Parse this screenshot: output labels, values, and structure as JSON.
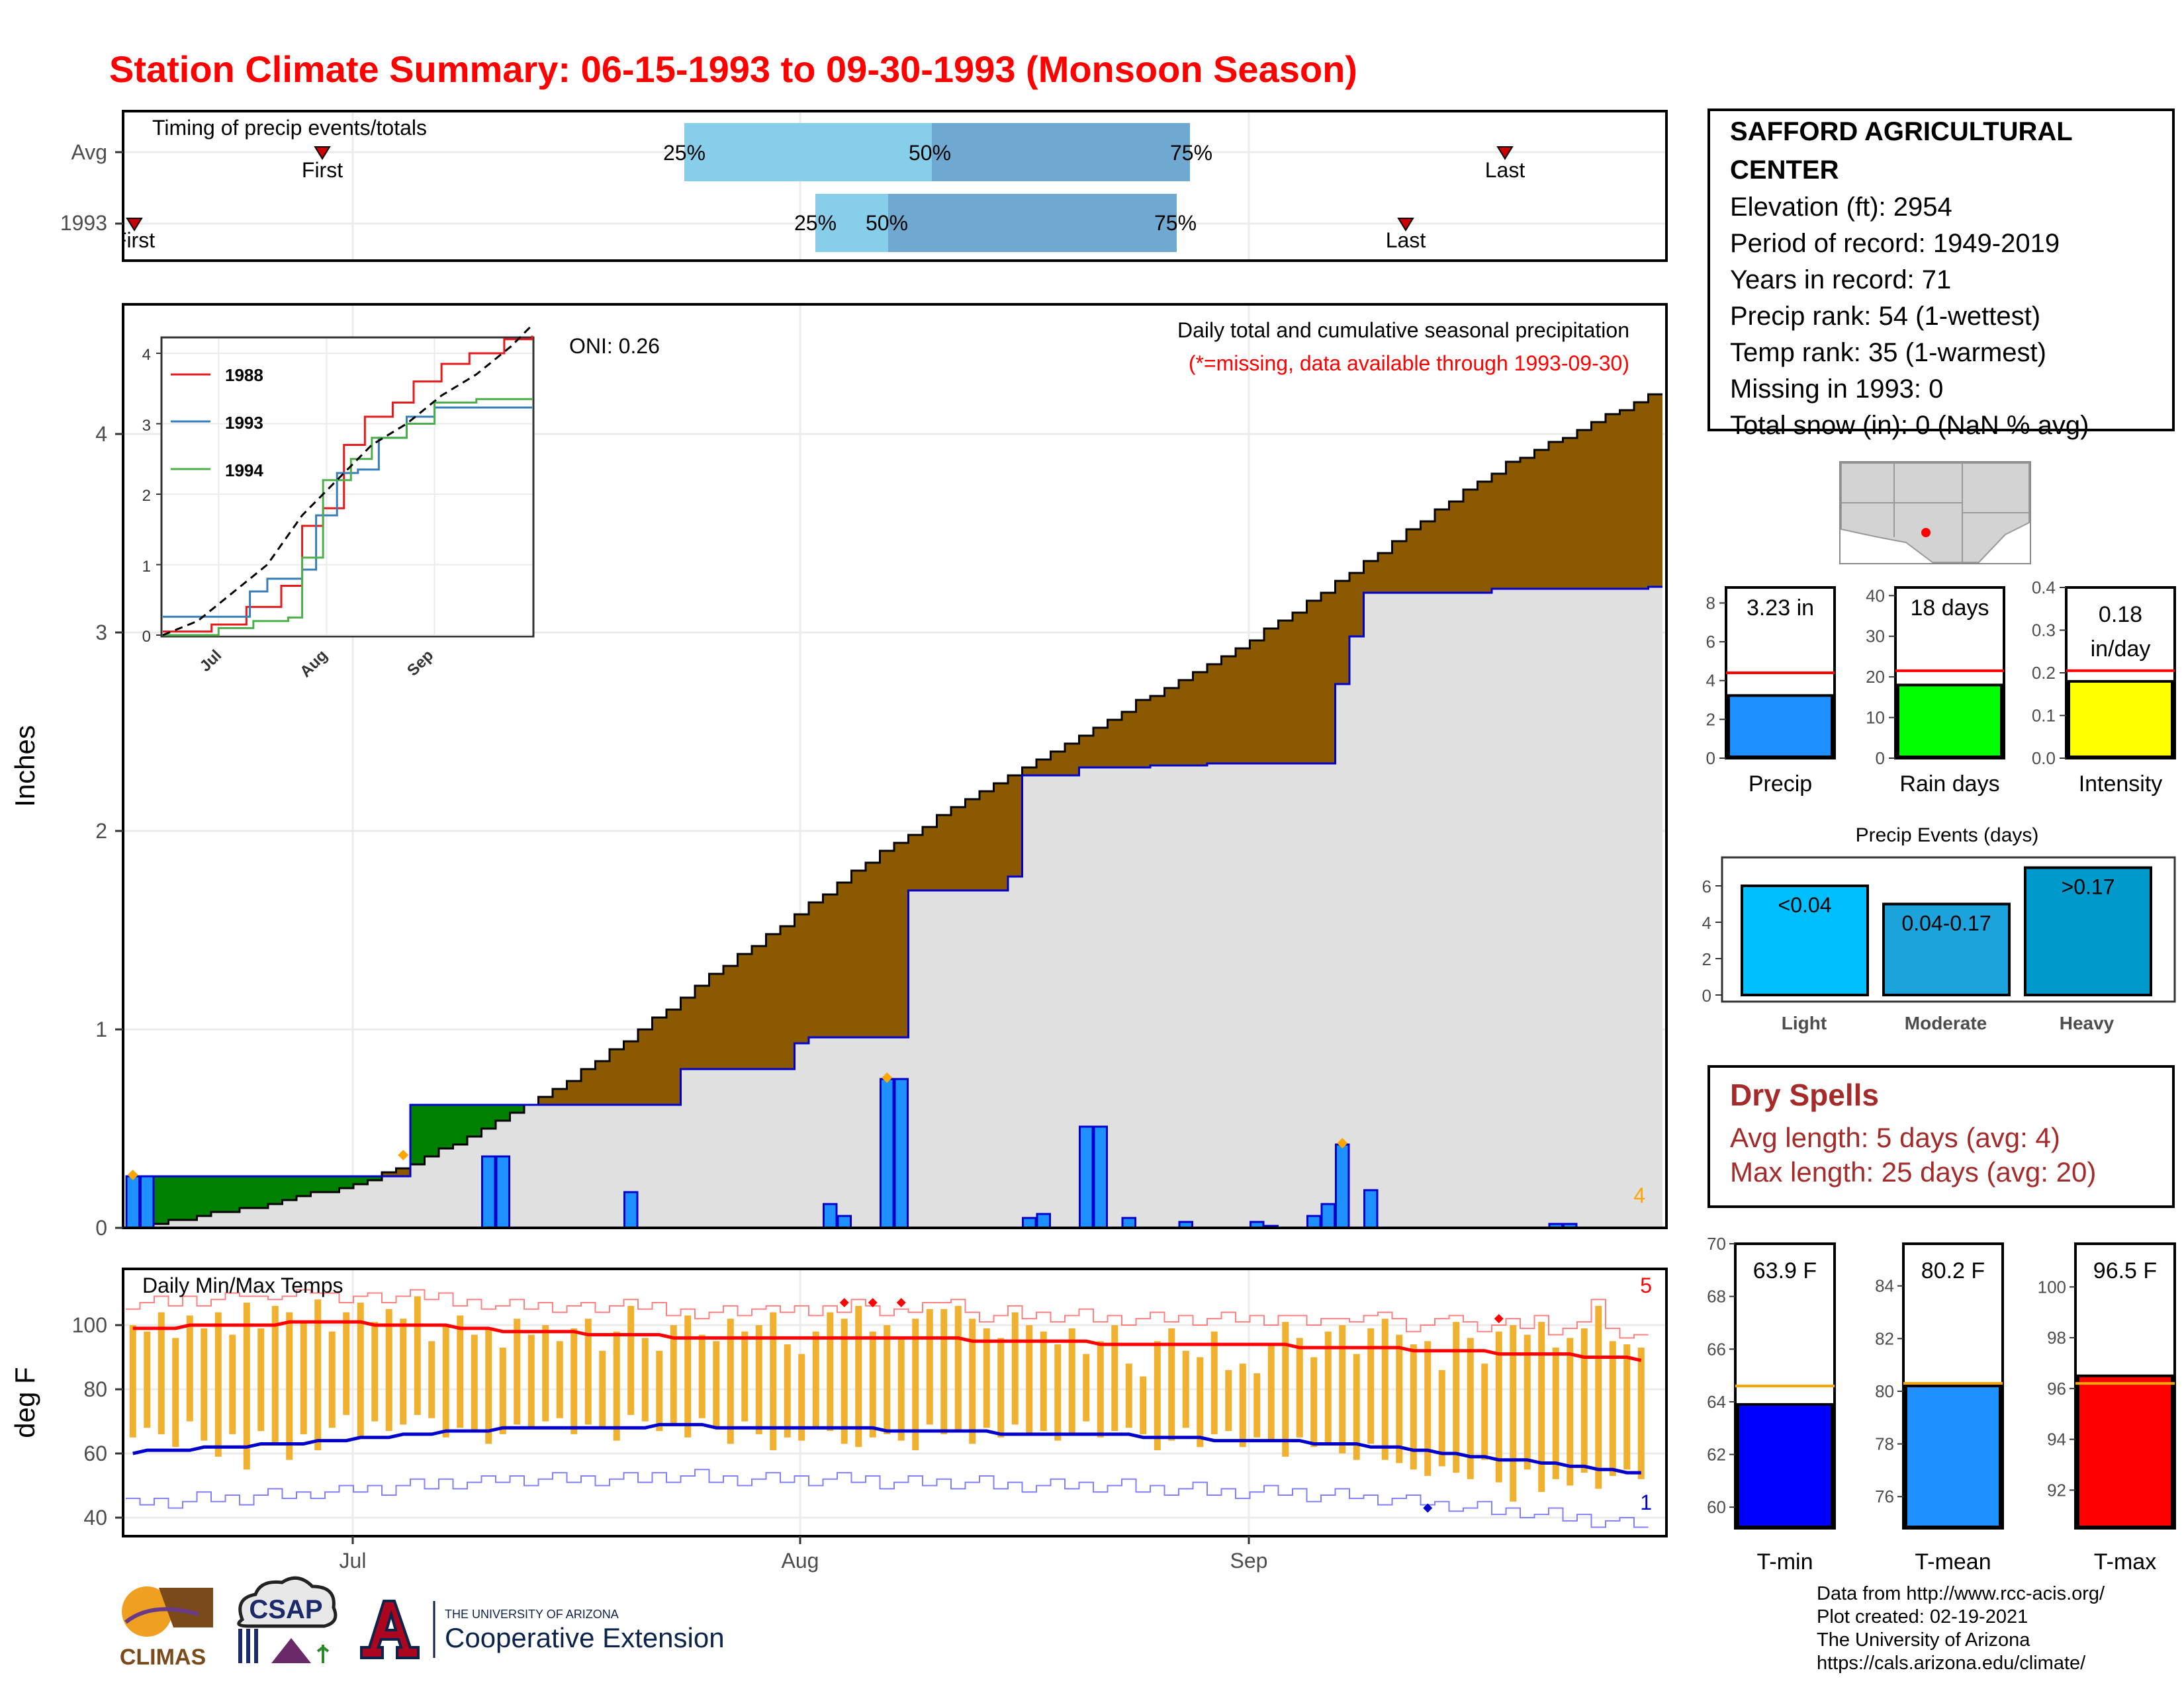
{
  "title": "Station Climate Summary: 06-15-1993 to 09-30-1993 (Monsoon Season)",
  "station": {
    "name": "SAFFORD AGRICULTURAL CENTER",
    "lines": [
      "Elevation (ft): 2954",
      "Period of record: 1949-2019",
      "Years in record: 71",
      "Precip rank: 54 (1-wettest)",
      "Temp rank: 35 (1-warmest)",
      "Missing in 1993: 0",
      "Total snow (in): 0 (NaN % avg)"
    ]
  },
  "timing": {
    "label": "Timing of precip events/totals",
    "rows": [
      "Avg",
      "1993"
    ],
    "first_label": "First",
    "first_label_1993": "First",
    "last_label": "Last",
    "pct_labels": [
      "25%",
      "50%",
      "75%"
    ],
    "colors": {
      "light": "#87ceeb",
      "dark": "#6fa8d0",
      "marker": "#cc0000"
    }
  },
  "precip_chart": {
    "ylabel": "Inches",
    "annotation_title": "Daily total and cumulative seasonal precipitation",
    "annotation_missing": "(*=missing, data available through 1993-09-30)",
    "oni": "ONI: 0.26",
    "count_label": "4",
    "y_ticks": [
      "0",
      "1",
      "2",
      "3",
      "4"
    ],
    "colors": {
      "avg_fill": "#8b5a00",
      "above_fill": "#008000",
      "obs_fill": "#e0e0e0",
      "obs_line": "#0000cc",
      "bar": "#1e90ff",
      "max_marker": "#ffa500"
    }
  },
  "inset": {
    "legend": [
      "1988",
      "1993",
      "1994"
    ],
    "x_ticks": [
      "Jul",
      "Aug",
      "Sep"
    ],
    "y_ticks": [
      "0",
      "1",
      "2",
      "3",
      "4"
    ],
    "colors": [
      "#e41a1c",
      "#377eb8",
      "#4daf4a"
    ]
  },
  "temp_chart": {
    "title": "Daily Min/Max Temps",
    "ylabel": "deg F",
    "y_ticks": [
      "40",
      "60",
      "80",
      "100"
    ],
    "count_high": "5",
    "count_low": "1",
    "colors": {
      "bar": "#f0b030",
      "max_line": "#ff0000",
      "min_line": "#0000cc"
    }
  },
  "x_axis": {
    "ticks": [
      "Jul",
      "Aug",
      "Sep"
    ]
  },
  "summary_bars": [
    {
      "label": "Precip",
      "value": 3.23,
      "value_text": "3.23 in",
      "avg": 4.4,
      "ymax": 8.8,
      "ticks": [
        "0",
        "2",
        "4",
        "6",
        "8"
      ],
      "color": "#1e90ff"
    },
    {
      "label": "Rain days",
      "value": 18,
      "value_text": "18 days",
      "avg": 21.5,
      "ymax": 42,
      "ticks": [
        "0",
        "10",
        "20",
        "30",
        "40"
      ],
      "color": "#00ff00"
    },
    {
      "label": "Intensity",
      "value": 0.18,
      "value_text": "0.18 in/day",
      "avg": 0.205,
      "ymax": 0.4,
      "ticks": [
        "0.0",
        "0.1",
        "0.2",
        "0.3",
        "0.4"
      ],
      "color": "#ffff00"
    }
  ],
  "precip_events": {
    "title": "Precip Events (days)",
    "ticks": [
      "0",
      "2",
      "4",
      "6"
    ],
    "bars": [
      {
        "label": "Light",
        "value": 6,
        "text": "<0.04",
        "color": "#00bfff"
      },
      {
        "label": "Moderate",
        "value": 5,
        "text": "0.04-0.17",
        "color": "#1ca3dc"
      },
      {
        "label": "Heavy",
        "value": 7,
        "text": ">0.17",
        "color": "#0099cc"
      }
    ]
  },
  "dry_spells": {
    "title": "Dry Spells",
    "avg_line": "Avg length: 5 days (avg: 4)",
    "max_line": "Max length: 25 days (avg: 20)"
  },
  "temp_bars": [
    {
      "label": "T-min",
      "value": 63.9,
      "value_text": "63.9 F",
      "avg": 64.6,
      "ymin": 59.2,
      "ymax": 70,
      "ticks": [
        "60",
        "62",
        "64",
        "66",
        "68",
        "70"
      ],
      "color": "#0000ff"
    },
    {
      "label": "T-mean",
      "value": 80.2,
      "value_text": "80.2 F",
      "avg": 80.3,
      "ymin": 74.8,
      "ymax": 85.6,
      "ticks": [
        "76",
        "78",
        "80",
        "82",
        "84"
      ],
      "color": "#1e90ff"
    },
    {
      "label": "T-max",
      "value": 96.5,
      "value_text": "96.5 F",
      "avg": 96.2,
      "ymin": 90.5,
      "ymax": 101.7,
      "ticks": [
        "92",
        "94",
        "96",
        "98",
        "100"
      ],
      "color": "#ff0000"
    }
  ],
  "footer": {
    "lines": [
      "Data from http://www.rcc-acis.org/",
      "Plot created: 02-19-2021",
      "The University of Arizona",
      "https://cals.arizona.edu/climate/"
    ],
    "logos": {
      "climas": "CLIMAS",
      "csap": "CSAP",
      "ua_small": "THE UNIVERSITY OF ARIZONA",
      "ua_big": "Cooperative Extension"
    }
  },
  "chart_data": [
    {
      "type": "area",
      "title": "Daily total and cumulative seasonal precipitation",
      "ylabel": "Inches",
      "x_range": [
        "1993-06-15",
        "1993-09-30"
      ],
      "ylim": [
        0,
        4.7
      ],
      "series": [
        {
          "name": "1993",
          "x": [
            "06-15",
            "07-04",
            "07-05",
            "07-10",
            "07-24",
            "07-26",
            "07-27",
            "08-01",
            "08-02",
            "08-09",
            "08-15",
            "08-16",
            "08-17",
            "08-21",
            "08-26",
            "08-30",
            "09-08",
            "09-09",
            "09-10",
            "09-19",
            "09-30"
          ],
          "values": [
            0.26,
            0.26,
            0.62,
            0.62,
            0.8,
            0.8,
            0.8,
            0.93,
            0.96,
            1.7,
            1.7,
            1.77,
            2.28,
            2.32,
            2.33,
            2.34,
            2.74,
            2.98,
            3.2,
            3.22,
            3.23
          ]
        },
        {
          "x": [
            "06-15",
            "06-25",
            "07-01",
            "07-05",
            "07-10",
            "07-15",
            "07-20",
            "07-25",
            "07-31",
            "08-05",
            "08-10",
            "08-15",
            "08-20",
            "08-25",
            "08-31",
            "09-05",
            "09-10",
            "09-15",
            "09-20",
            "09-25",
            "09-30"
          ],
          "values": [
            0.0,
            0.12,
            0.22,
            0.32,
            0.5,
            0.7,
            0.94,
            1.22,
            1.52,
            1.8,
            2.03,
            2.24,
            2.43,
            2.65,
            2.88,
            3.1,
            3.35,
            3.62,
            3.85,
            4.02,
            4.2
          ]
        }
      ],
      "daily_bars": {
        "x": [
          "06-15",
          "06-16",
          "07-10",
          "07-11",
          "07-20",
          "08-03",
          "08-04",
          "08-07",
          "08-08",
          "08-17",
          "08-18",
          "08-21",
          "08-22",
          "08-24",
          "08-28",
          "09-02",
          "09-03",
          "09-06",
          "09-07",
          "09-08",
          "09-10",
          "09-23",
          "09-24"
        ],
        "values": [
          0.26,
          0.26,
          0.36,
          0.36,
          0.18,
          0.12,
          0.06,
          0.75,
          0.75,
          0.05,
          0.07,
          0.51,
          0.51,
          0.05,
          0.03,
          0.03,
          0.01,
          0.06,
          0.12,
          0.42,
          0.19,
          0.02,
          0.02
        ]
      }
    },
    {
      "type": "line",
      "title": "",
      "x_range": [
        "06-15",
        "09-30"
      ],
      "ylim": [
        0,
        4.5
      ],
      "series": [
        {
          "name": "1988",
          "x": [
            0,
            14,
            24,
            34,
            40,
            46,
            52,
            58,
            66,
            72,
            80,
            88,
            98,
            106
          ],
          "values": [
            0.05,
            0.15,
            0.4,
            0.7,
            1.55,
            1.8,
            2.7,
            3.1,
            3.3,
            3.6,
            3.85,
            4.0,
            4.2,
            4.25
          ]
        },
        {
          "name": "1993",
          "x": [
            0,
            19,
            25,
            30,
            40,
            44,
            50,
            56,
            62,
            70,
            78,
            90,
            106
          ],
          "values": [
            0.26,
            0.26,
            0.62,
            0.8,
            0.93,
            1.7,
            2.3,
            2.35,
            2.8,
            3.1,
            3.23,
            3.23,
            3.23
          ]
        },
        {
          "name": "1994",
          "x": [
            0,
            16,
            26,
            36,
            40,
            46,
            54,
            60,
            70,
            78,
            90,
            106
          ],
          "values": [
            0.0,
            0.1,
            0.2,
            0.25,
            1.1,
            2.2,
            2.5,
            2.8,
            3.0,
            3.3,
            3.35,
            3.35
          ]
        },
        {
          "x": [
            0,
            10,
            20,
            30,
            40,
            50,
            60,
            70,
            80,
            90,
            100,
            106
          ],
          "values": [
            0.0,
            0.2,
            0.6,
            1.0,
            1.7,
            2.2,
            2.7,
            3.0,
            3.4,
            3.7,
            4.1,
            4.4
          ]
        }
      ]
    },
    {
      "type": "bar",
      "title": "Daily Min/Max Temps",
      "ylabel": "deg F",
      "ylim": [
        35,
        117
      ],
      "x_range": [
        "06-15",
        "09-30"
      ],
      "series": [
        {
          "name": "daily_min",
          "values": [
            65,
            68,
            66,
            62,
            70,
            64,
            59,
            66,
            55,
            67,
            63,
            58,
            66,
            61,
            68,
            72,
            65,
            70,
            67,
            69,
            72,
            71,
            65,
            68,
            67,
            63,
            66,
            69,
            68,
            70,
            71,
            66,
            69,
            68,
            64,
            72,
            70,
            67,
            69,
            65,
            71,
            68,
            63,
            70,
            66,
            61,
            65,
            64,
            68,
            67,
            63,
            62,
            65,
            66,
            64,
            61,
            69,
            66,
            67,
            63,
            68,
            65,
            69,
            66,
            67,
            64,
            66,
            70,
            65,
            67,
            68,
            66,
            61,
            64,
            68,
            62,
            66,
            67,
            62,
            65,
            64,
            59,
            65,
            62,
            63,
            60,
            58,
            63,
            58,
            57,
            55,
            53,
            56,
            54,
            52,
            58,
            51,
            45,
            55,
            48,
            52,
            50,
            54,
            49,
            53,
            55,
            52
          ]
        },
        {
          "name": "daily_max",
          "values": [
            100,
            98,
            104,
            96,
            103,
            99,
            104,
            97,
            107,
            99,
            106,
            104,
            101,
            108,
            98,
            104,
            107,
            101,
            105,
            102,
            109,
            95,
            100,
            103,
            97,
            99,
            93,
            102,
            97,
            100,
            95,
            99,
            102,
            92,
            98,
            106,
            96,
            92,
            100,
            103,
            97,
            95,
            102,
            98,
            100,
            104,
            94,
            91,
            98,
            104,
            102,
            106,
            98,
            100,
            96,
            102,
            105,
            105,
            106,
            102,
            99,
            96,
            104,
            100,
            98,
            94,
            99,
            91,
            95,
            100,
            88,
            84,
            95,
            99,
            92,
            90,
            98,
            86,
            88,
            85,
            94,
            101,
            96,
            90,
            98,
            100,
            91,
            99,
            102,
            97,
            94,
            95,
            86,
            101,
            96,
            88,
            98,
            100,
            97,
            101,
            93,
            96,
            99,
            106,
            95,
            94,
            93
          ]
        },
        {
          "name": "avg_max",
          "values": [
            99,
            99,
            99,
            99,
            100,
            100,
            100,
            100,
            100,
            100,
            100,
            101,
            101,
            101,
            101,
            101,
            101,
            100,
            100,
            100,
            100,
            100,
            100,
            99,
            99,
            99,
            98,
            98,
            98,
            98,
            98,
            98,
            97,
            97,
            97,
            97,
            97,
            97,
            96,
            96,
            96,
            96,
            96,
            96,
            96,
            96,
            96,
            96,
            96,
            96,
            96,
            96,
            96,
            96,
            96,
            96,
            96,
            96,
            96,
            95,
            95,
            95,
            95,
            95,
            95,
            95,
            95,
            95,
            94,
            94,
            94,
            94,
            94,
            94,
            94,
            94,
            94,
            94,
            94,
            94,
            94,
            94,
            93,
            93,
            93,
            93,
            93,
            93,
            93,
            93,
            92,
            92,
            92,
            92,
            92,
            92,
            91,
            91,
            91,
            91,
            91,
            91,
            90,
            90,
            90,
            90,
            89
          ]
        },
        {
          "name": "avg_min",
          "values": [
            60,
            61,
            61,
            61,
            61,
            62,
            62,
            62,
            62,
            63,
            63,
            63,
            63,
            64,
            64,
            64,
            65,
            65,
            65,
            66,
            66,
            66,
            67,
            67,
            67,
            67,
            68,
            68,
            68,
            68,
            68,
            68,
            68,
            68,
            68,
            68,
            68,
            69,
            69,
            69,
            69,
            68,
            68,
            68,
            68,
            68,
            68,
            68,
            68,
            68,
            68,
            68,
            68,
            67,
            67,
            67,
            67,
            67,
            67,
            67,
            67,
            66,
            66,
            66,
            66,
            66,
            66,
            66,
            66,
            66,
            66,
            65,
            65,
            65,
            65,
            65,
            64,
            64,
            64,
            64,
            64,
            64,
            64,
            63,
            63,
            63,
            63,
            62,
            62,
            62,
            61,
            61,
            60,
            60,
            59,
            59,
            58,
            58,
            58,
            57,
            57,
            56,
            56,
            55,
            55,
            54,
            54
          ]
        }
      ]
    },
    {
      "type": "bar",
      "categories": [
        "Precip",
        "Rain days",
        "Intensity"
      ],
      "values": [
        3.23,
        18,
        0.18
      ],
      "series": [
        {
          "name": "average",
          "values": [
            4.4,
            21.5,
            0.205
          ]
        }
      ]
    },
    {
      "type": "bar",
      "title": "Precip Events (days)",
      "categories": [
        "Light",
        "Moderate",
        "Heavy"
      ],
      "values": [
        6,
        5,
        7
      ]
    },
    {
      "type": "bar",
      "categories": [
        "T-min",
        "T-mean",
        "T-max"
      ],
      "values": [
        63.9,
        80.2,
        96.5
      ],
      "series": [
        {
          "name": "average",
          "values": [
            64.6,
            80.3,
            96.2
          ]
        }
      ]
    }
  ]
}
